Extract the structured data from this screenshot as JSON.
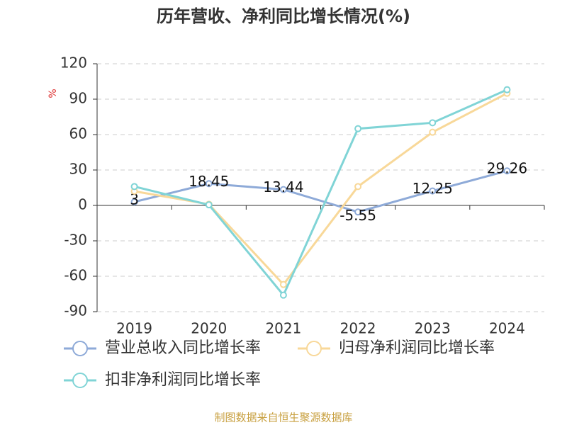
{
  "chart_data": {
    "type": "line",
    "title": "历年营收、净利同比增长情况(%)",
    "y_label": "%",
    "categories": [
      "2019",
      "2020",
      "2021",
      "2022",
      "2023",
      "2024"
    ],
    "series": [
      {
        "name": "营业总收入同比增长率",
        "color": "#8eaad8",
        "values": [
          3,
          18.45,
          13.44,
          -5.55,
          12.25,
          29.26
        ],
        "show_labels": true
      },
      {
        "name": "归母净利润同比增长率",
        "color": "#f8d899",
        "values": [
          12,
          1,
          -67,
          16,
          62,
          95
        ],
        "show_labels": false
      },
      {
        "name": "扣非净利润同比增长率",
        "color": "#80d4d6",
        "values": [
          16,
          0.5,
          -76,
          65,
          70,
          98
        ],
        "show_labels": false
      }
    ],
    "ylim": [
      -90,
      120
    ],
    "yticks": [
      -90,
      -60,
      -30,
      0,
      30,
      60,
      90,
      120
    ],
    "grid": true,
    "source": "制图数据来自恒生聚源数据库"
  }
}
